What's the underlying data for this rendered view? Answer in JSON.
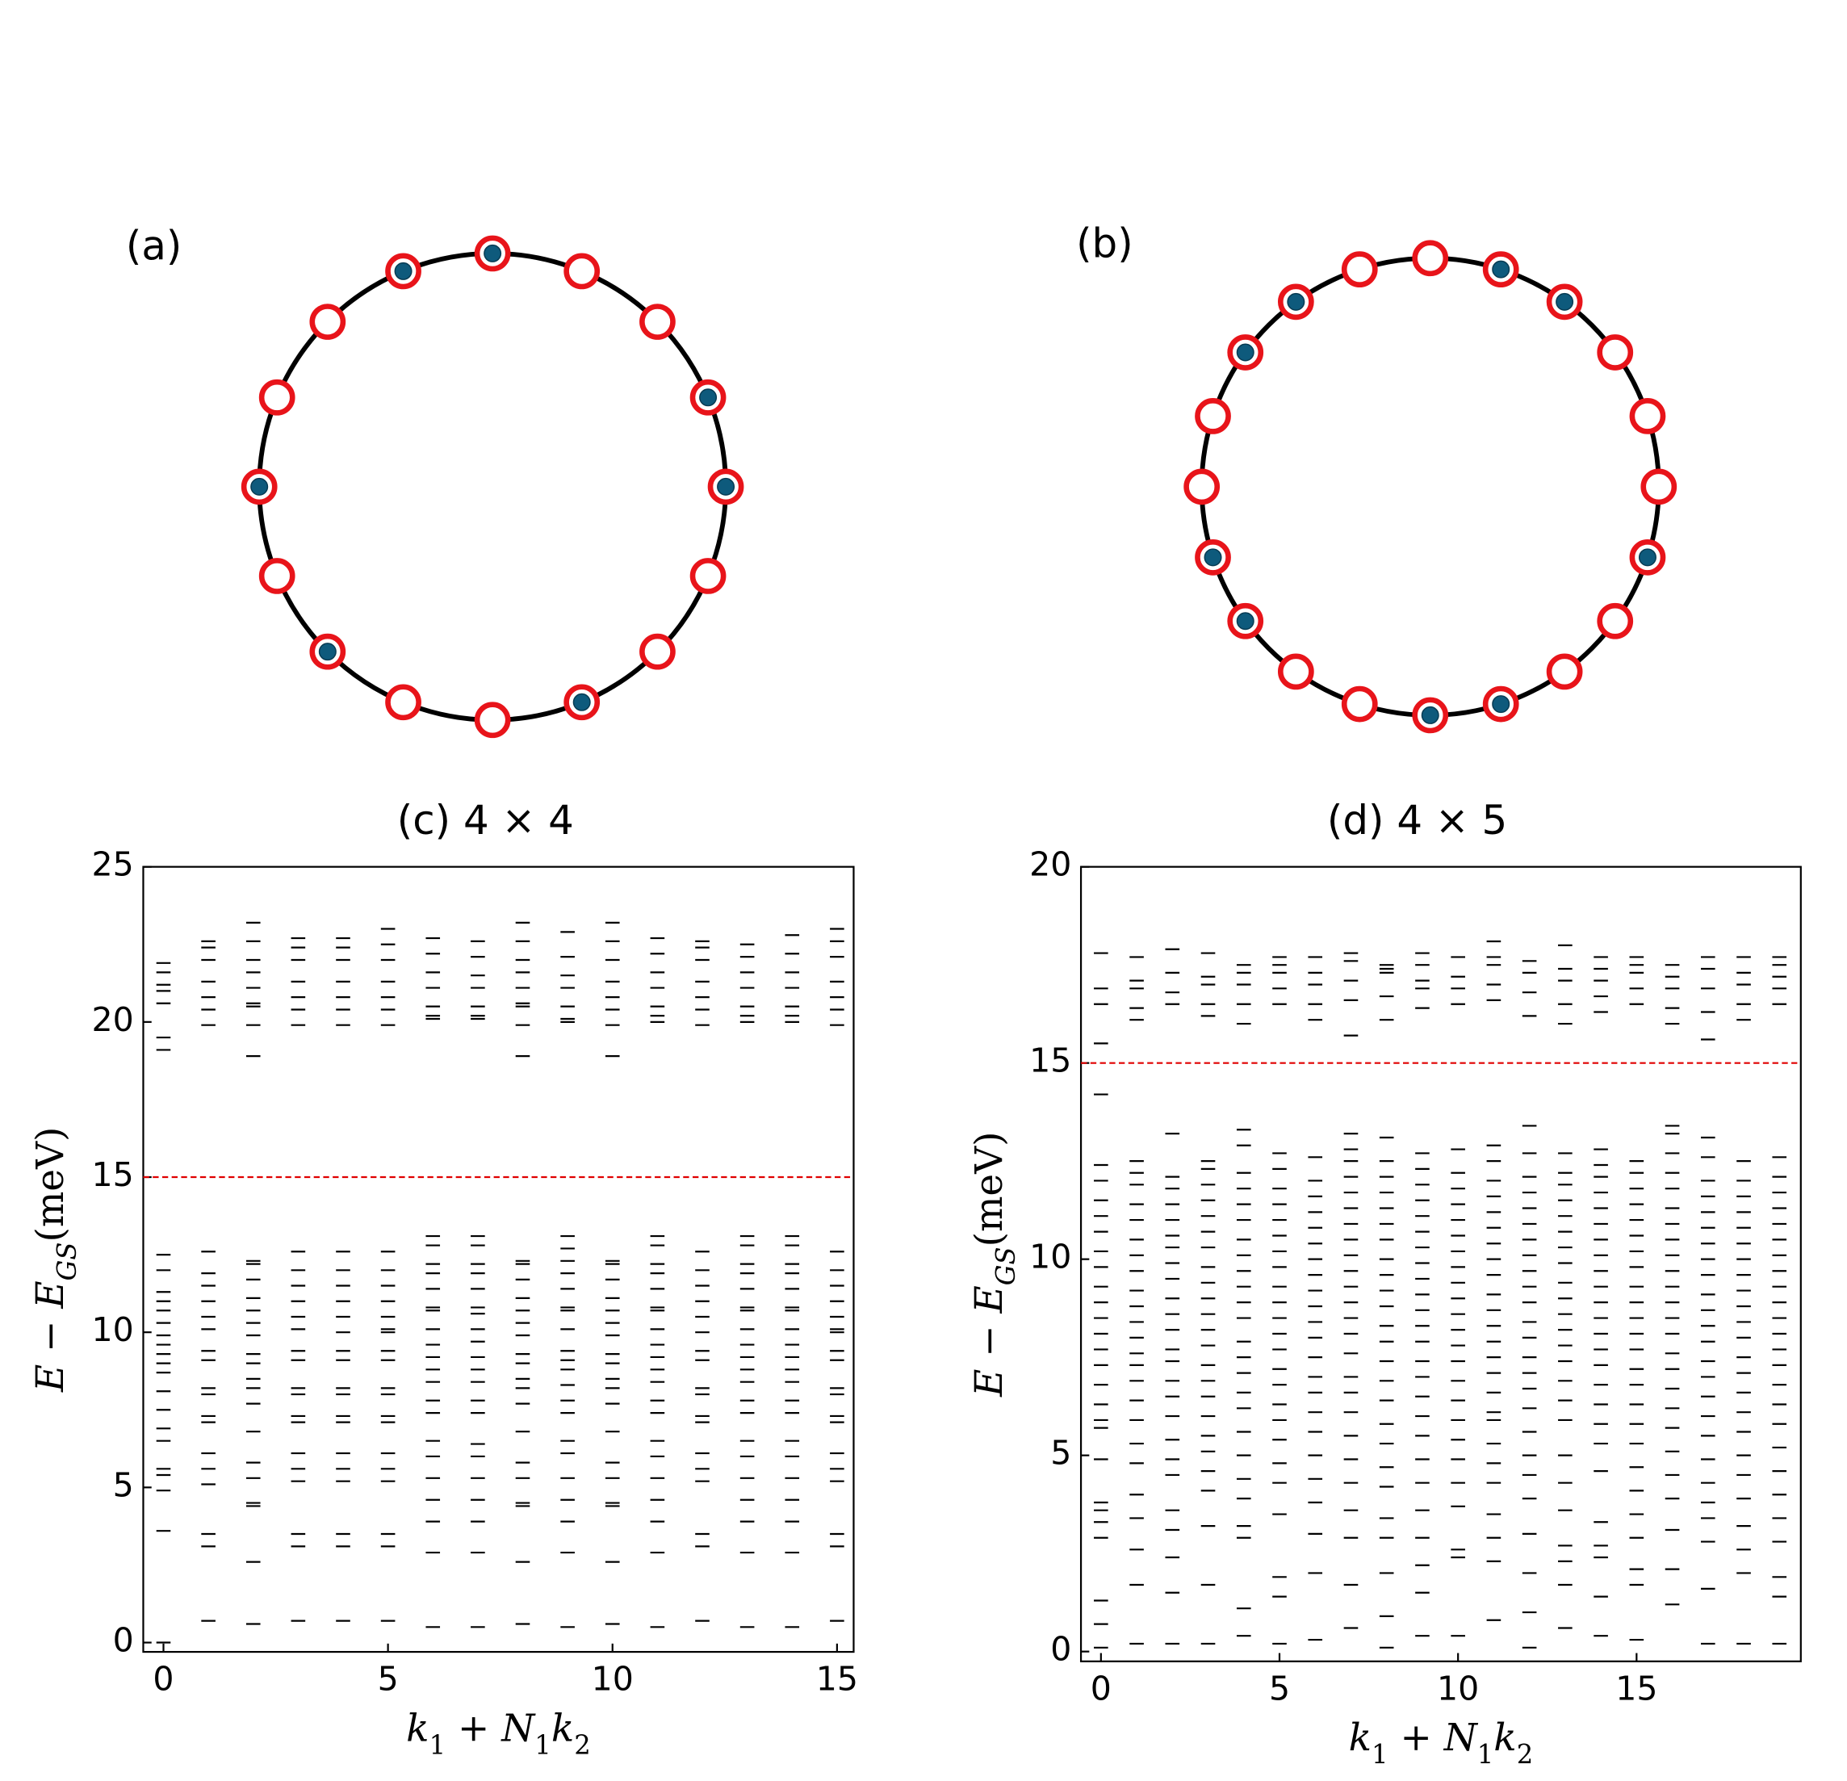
{
  "chart_data": [
    {
      "type": "ring",
      "label": "(a)",
      "values": [
        1,
        0,
        0,
        1,
        1,
        0,
        0,
        1,
        0,
        0,
        1,
        0,
        1,
        0,
        0,
        1
      ]
    },
    {
      "type": "ring",
      "label": "(b)",
      "values": [
        0,
        1,
        1,
        0,
        0,
        0,
        1,
        0,
        0,
        1,
        1,
        0,
        0,
        1,
        1,
        0,
        0,
        1,
        1,
        0
      ]
    },
    {
      "type": "levels",
      "title": "(c)  4 × 4",
      "ylabel": [
        "E − E",
        "GS",
        "(meV)"
      ],
      "xlabel": [
        "k",
        "1",
        " + N",
        "1",
        "k",
        "2"
      ],
      "xlim": [
        -0.45,
        15.37
      ],
      "xticks": [
        0,
        5,
        10,
        15
      ],
      "ylim": [
        -0.3,
        25
      ],
      "yticks": [
        0,
        5,
        10,
        15,
        20,
        25
      ],
      "threshold": 15,
      "threshold_color": "#e00000",
      "color": "#000000",
      "x": [
        0,
        1,
        2,
        3,
        4,
        5,
        6,
        7,
        8,
        9,
        10,
        11,
        12,
        13,
        14,
        15
      ],
      "values": [
        [
          0,
          3.6,
          4.9,
          5.4,
          5.6,
          6.5,
          6.9,
          7.5,
          8.1,
          8.7,
          9.0,
          9.3,
          9.6,
          9.9,
          10.3,
          10.7,
          11.0,
          11.3,
          12.0,
          12.5,
          19.1,
          19.5,
          20.6,
          21.0,
          21.2,
          21.6,
          21.9
        ],
        [
          0.7,
          3.1,
          3.5,
          5.1,
          5.6,
          6.1,
          7.1,
          7.3,
          8.0,
          8.2,
          9.1,
          9.4,
          10.1,
          10.5,
          11.0,
          11.5,
          11.9,
          12.6,
          19.9,
          20.4,
          20.8,
          21.3,
          22.0,
          22.4,
          22.6
        ],
        [
          0.6,
          2.6,
          4.4,
          4.5,
          5.3,
          5.8,
          6.8,
          7.7,
          8.2,
          8.5,
          9.0,
          9.3,
          9.9,
          10.3,
          10.7,
          11.1,
          11.7,
          12.2,
          12.3,
          18.9,
          19.9,
          20.5,
          20.6,
          21.1,
          21.6,
          22.0,
          22.6,
          23.2
        ],
        [
          0.7,
          3.1,
          3.5,
          5.2,
          5.6,
          6.1,
          7.1,
          7.3,
          8.0,
          8.2,
          9.1,
          9.4,
          10.1,
          10.5,
          11.0,
          11.5,
          12.0,
          12.6,
          19.9,
          20.4,
          20.8,
          21.3,
          22.0,
          22.4,
          22.7
        ],
        [
          0.7,
          3.1,
          3.5,
          5.2,
          5.6,
          6.1,
          7.1,
          7.3,
          8.0,
          8.2,
          9.1,
          9.4,
          10.0,
          10.5,
          11.0,
          11.5,
          12.0,
          12.6,
          19.9,
          20.4,
          20.8,
          21.3,
          22.0,
          22.4,
          22.7
        ],
        [
          0.7,
          3.1,
          3.5,
          5.2,
          5.6,
          6.1,
          7.1,
          7.3,
          8.0,
          8.2,
          9.1,
          9.4,
          10.0,
          10.1,
          10.5,
          11.0,
          11.5,
          12.0,
          12.6,
          19.9,
          20.4,
          20.8,
          21.3,
          22.0,
          22.5,
          23.0
        ],
        [
          0.5,
          2.9,
          3.9,
          4.6,
          5.3,
          6.0,
          6.5,
          7.4,
          7.8,
          8.4,
          8.8,
          9.2,
          9.6,
          10.1,
          10.7,
          10.8,
          11.4,
          11.9,
          12.2,
          12.8,
          13.1,
          20.1,
          20.2,
          20.5,
          21.1,
          21.6,
          22.2,
          22.7
        ],
        [
          0.5,
          2.9,
          3.9,
          4.6,
          5.3,
          6.0,
          6.4,
          7.4,
          7.8,
          8.4,
          8.8,
          9.2,
          9.7,
          10.1,
          10.6,
          10.8,
          11.4,
          11.9,
          12.2,
          12.8,
          13.1,
          20.1,
          20.2,
          20.5,
          21.1,
          21.5,
          22.1,
          22.6
        ],
        [
          0.6,
          2.6,
          4.4,
          4.5,
          5.3,
          5.8,
          6.8,
          7.7,
          8.2,
          8.5,
          9.0,
          9.3,
          9.9,
          10.3,
          10.7,
          11.1,
          11.7,
          12.2,
          12.3,
          18.9,
          19.9,
          20.5,
          20.6,
          21.1,
          21.6,
          22.0,
          22.6,
          23.2
        ],
        [
          0.5,
          2.9,
          3.9,
          4.6,
          5.3,
          6.1,
          6.5,
          7.4,
          7.8,
          8.3,
          8.8,
          9.1,
          9.4,
          10.1,
          10.7,
          10.8,
          11.4,
          11.9,
          12.3,
          12.7,
          13.1,
          20.0,
          20.1,
          20.5,
          21.1,
          21.5,
          22.1,
          22.9
        ],
        [
          0.6,
          2.6,
          4.4,
          4.5,
          5.3,
          5.8,
          6.8,
          7.7,
          8.2,
          8.5,
          9.0,
          9.3,
          9.9,
          10.3,
          10.7,
          11.1,
          11.7,
          12.2,
          12.3,
          18.9,
          19.9,
          20.4,
          20.8,
          21.3,
          22.0,
          22.6,
          23.2
        ],
        [
          0.5,
          2.9,
          3.9,
          4.6,
          5.3,
          6.0,
          6.5,
          7.4,
          7.8,
          8.4,
          8.8,
          9.2,
          9.6,
          10.1,
          10.7,
          10.8,
          11.4,
          11.9,
          12.2,
          12.8,
          13.1,
          20.0,
          20.2,
          20.5,
          21.1,
          21.6,
          22.2,
          22.7
        ],
        [
          0.7,
          3.1,
          3.5,
          5.2,
          5.6,
          6.1,
          7.1,
          7.3,
          8.0,
          8.2,
          9.1,
          9.4,
          10.0,
          10.5,
          11.0,
          11.5,
          12.0,
          12.6,
          19.9,
          20.4,
          20.8,
          21.3,
          22.0,
          22.4,
          22.6
        ],
        [
          0.5,
          2.9,
          3.9,
          4.6,
          5.3,
          6.0,
          6.5,
          7.4,
          7.8,
          8.4,
          8.8,
          9.2,
          9.6,
          10.1,
          10.7,
          10.8,
          11.4,
          11.9,
          12.2,
          12.8,
          13.1,
          20.0,
          20.2,
          20.5,
          21.1,
          21.6,
          22.1,
          22.5
        ],
        [
          0.5,
          2.9,
          3.9,
          4.6,
          5.3,
          6.0,
          6.5,
          7.4,
          7.8,
          8.4,
          8.8,
          9.2,
          9.6,
          10.1,
          10.7,
          10.8,
          11.4,
          11.9,
          12.2,
          12.8,
          13.1,
          20.0,
          20.2,
          20.5,
          21.1,
          21.6,
          22.2,
          22.8
        ],
        [
          0.7,
          3.1,
          3.5,
          5.2,
          5.6,
          6.1,
          7.1,
          7.3,
          8.0,
          8.2,
          9.1,
          9.4,
          10.0,
          10.1,
          10.5,
          11.0,
          11.5,
          12.0,
          12.6,
          19.9,
          20.4,
          20.8,
          21.3,
          22.1,
          22.6,
          23.0
        ]
      ]
    },
    {
      "type": "levels",
      "title": "(d)  4 × 5",
      "ylabel": [
        "E − E",
        "GS",
        "(meV)"
      ],
      "xlabel": [
        "k",
        "1",
        " + N",
        "1",
        "k",
        "2"
      ],
      "xlim": [
        -0.56,
        19.6
      ],
      "xticks": [
        0,
        5,
        10,
        15
      ],
      "ylim": [
        -0.25,
        20
      ],
      "yticks": [
        0,
        5,
        10,
        15,
        20
      ],
      "threshold": 15,
      "threshold_color": "#e00000",
      "color": "#000000",
      "x": [
        0,
        1,
        2,
        3,
        4,
        5,
        6,
        7,
        8,
        9,
        10,
        11,
        12,
        13,
        14,
        15,
        16,
        17,
        18,
        19
      ],
      "values": [
        [
          0.1,
          0.7,
          1.3,
          2.9,
          3.3,
          3.6,
          3.8,
          4.9,
          5.7,
          5.9,
          6.3,
          6.8,
          7.3,
          7.7,
          8.1,
          8.5,
          8.9,
          9.3,
          9.8,
          10.2,
          10.7,
          11.1,
          11.5,
          12.0,
          12.4,
          14.2,
          15.5,
          16.5,
          16.9,
          17.8
        ],
        [
          0.2,
          1.7,
          2.6,
          3.4,
          4.0,
          4.8,
          5.3,
          5.9,
          6.4,
          6.9,
          7.3,
          7.6,
          8.0,
          8.4,
          8.8,
          9.2,
          9.7,
          10.1,
          10.5,
          11.0,
          11.4,
          11.9,
          12.2,
          12.5,
          16.1,
          16.4,
          16.9,
          17.1,
          17.7
        ],
        [
          0.2,
          1.5,
          2.4,
          3.1,
          3.6,
          4.5,
          4.9,
          5.4,
          6.0,
          6.5,
          6.9,
          7.4,
          7.7,
          8.2,
          8.6,
          9.0,
          9.5,
          9.9,
          10.3,
          10.6,
          11.0,
          11.4,
          11.8,
          12.1,
          13.2,
          16.5,
          16.8,
          17.3,
          17.9
        ],
        [
          0.2,
          1.7,
          3.2,
          4.1,
          4.6,
          5.1,
          5.5,
          6.0,
          6.5,
          6.9,
          7.3,
          7.8,
          8.2,
          8.6,
          9.0,
          9.4,
          9.8,
          10.3,
          10.7,
          11.1,
          11.5,
          11.9,
          12.3,
          12.5,
          16.2,
          16.5,
          17.0,
          17.2,
          17.8
        ],
        [
          0.4,
          1.1,
          2.9,
          3.2,
          3.9,
          4.4,
          5.0,
          5.6,
          6.2,
          6.6,
          7.1,
          7.5,
          7.9,
          8.5,
          8.9,
          9.3,
          9.7,
          10.1,
          10.5,
          11.0,
          11.4,
          11.8,
          12.2,
          12.9,
          13.3,
          16.0,
          16.5,
          17.0,
          17.3,
          17.5
        ],
        [
          0.2,
          1.4,
          1.9,
          3.5,
          4.3,
          4.8,
          5.4,
          5.9,
          6.3,
          6.8,
          7.2,
          7.7,
          8.1,
          8.5,
          8.9,
          9.3,
          9.8,
          10.2,
          10.6,
          11.0,
          11.4,
          11.8,
          12.3,
          12.7,
          16.5,
          16.9,
          17.3,
          17.5,
          17.7
        ],
        [
          0.3,
          2.0,
          3.0,
          3.8,
          4.4,
          5.0,
          5.6,
          6.1,
          6.6,
          7.0,
          7.5,
          8.0,
          8.4,
          8.8,
          9.2,
          9.6,
          10.0,
          10.4,
          10.8,
          11.2,
          11.6,
          12.0,
          12.6,
          16.1,
          16.5,
          17.0,
          17.3,
          17.7
        ],
        [
          0.6,
          1.7,
          2.9,
          3.6,
          4.3,
          4.9,
          5.5,
          6.1,
          6.6,
          7.0,
          7.6,
          8.1,
          8.5,
          8.9,
          9.3,
          9.7,
          10.1,
          10.5,
          10.9,
          11.3,
          11.7,
          12.1,
          12.5,
          12.8,
          13.2,
          15.7,
          16.6,
          17.1,
          17.6,
          17.8
        ],
        [
          0.1,
          0.9,
          2.0,
          2.9,
          3.4,
          4.2,
          4.7,
          5.3,
          5.8,
          6.4,
          6.9,
          7.4,
          7.9,
          8.3,
          8.8,
          9.2,
          9.6,
          10.0,
          10.5,
          10.9,
          11.3,
          11.7,
          12.1,
          12.5,
          13.1,
          16.1,
          16.7,
          17.3,
          17.4,
          17.5
        ],
        [
          0.4,
          1.5,
          2.2,
          2.9,
          3.6,
          4.3,
          4.9,
          5.5,
          6.0,
          6.5,
          7.0,
          7.4,
          7.9,
          8.3,
          8.7,
          9.1,
          9.5,
          9.9,
          10.3,
          10.7,
          11.1,
          11.5,
          11.9,
          12.3,
          12.7,
          16.4,
          16.9,
          17.1,
          17.5,
          17.8
        ],
        [
          0.4,
          2.4,
          2.6,
          3.7,
          4.3,
          4.9,
          5.4,
          5.9,
          6.4,
          6.9,
          7.4,
          7.8,
          8.2,
          8.6,
          9.0,
          9.4,
          9.8,
          10.2,
          10.6,
          11.0,
          11.4,
          11.8,
          12.2,
          12.8,
          16.5,
          16.9,
          17.2,
          17.7
        ],
        [
          0.8,
          2.3,
          2.9,
          3.5,
          4.3,
          4.8,
          5.3,
          5.9,
          6.1,
          6.6,
          7.1,
          7.5,
          7.9,
          8.3,
          8.7,
          9.1,
          9.6,
          10.0,
          10.4,
          10.8,
          11.2,
          11.6,
          12.0,
          12.5,
          12.9,
          16.6,
          17.0,
          17.5,
          17.7,
          18.1
        ],
        [
          0.1,
          1.0,
          2.0,
          3.0,
          3.9,
          4.5,
          5.0,
          5.6,
          6.2,
          6.7,
          7.1,
          7.5,
          8.0,
          8.4,
          8.9,
          9.3,
          9.7,
          10.1,
          10.5,
          10.9,
          11.3,
          11.7,
          12.1,
          12.7,
          13.4,
          16.2,
          16.8,
          17.3,
          17.6
        ],
        [
          0.6,
          1.7,
          2.3,
          2.7,
          3.6,
          4.3,
          5.0,
          5.9,
          6.4,
          6.9,
          7.4,
          7.8,
          8.2,
          8.6,
          9.0,
          9.4,
          9.9,
          10.3,
          10.7,
          11.1,
          11.5,
          11.9,
          12.2,
          12.7,
          16.0,
          16.5,
          17.1,
          17.4,
          18.0
        ],
        [
          0.4,
          1.4,
          2.4,
          2.7,
          3.3,
          4.6,
          5.3,
          5.8,
          6.3,
          6.8,
          7.3,
          7.7,
          8.1,
          8.5,
          8.9,
          9.3,
          9.7,
          10.1,
          10.5,
          10.9,
          11.3,
          11.7,
          12.1,
          12.4,
          12.8,
          16.3,
          16.7,
          17.1,
          17.4,
          17.7
        ],
        [
          0.3,
          1.7,
          2.1,
          2.9,
          3.5,
          4.1,
          4.7,
          5.3,
          5.8,
          6.3,
          6.8,
          7.2,
          7.7,
          8.1,
          8.5,
          8.9,
          9.3,
          9.8,
          10.2,
          10.6,
          11.0,
          11.4,
          11.8,
          12.2,
          12.5,
          16.5,
          16.9,
          17.3,
          17.5,
          17.7
        ],
        [
          1.2,
          2.1,
          3.1,
          3.9,
          4.5,
          5.1,
          5.7,
          6.2,
          6.7,
          7.2,
          7.6,
          8.1,
          8.5,
          8.9,
          9.3,
          9.7,
          10.1,
          10.5,
          10.9,
          11.3,
          11.8,
          12.2,
          12.7,
          13.2,
          13.4,
          16.0,
          16.4,
          16.9,
          17.2,
          17.5
        ],
        [
          0.2,
          1.6,
          2.8,
          3.4,
          3.8,
          4.3,
          4.9,
          5.5,
          6.0,
          6.5,
          7.0,
          7.4,
          7.9,
          8.3,
          8.7,
          9.1,
          9.6,
          10.0,
          10.4,
          10.8,
          11.2,
          11.6,
          12.0,
          12.6,
          13.1,
          15.6,
          16.3,
          16.9,
          17.4,
          17.7
        ],
        [
          0.2,
          2.0,
          2.6,
          3.2,
          3.9,
          4.5,
          5.0,
          5.6,
          6.1,
          6.6,
          7.1,
          7.5,
          8.0,
          8.4,
          8.8,
          9.2,
          9.6,
          10.0,
          10.4,
          10.8,
          11.2,
          11.6,
          12.0,
          12.5,
          16.1,
          16.5,
          17.0,
          17.3,
          17.7
        ],
        [
          0.2,
          1.4,
          1.9,
          2.8,
          3.4,
          4.0,
          4.6,
          5.2,
          5.8,
          6.3,
          6.8,
          7.3,
          7.7,
          8.1,
          8.5,
          8.9,
          9.3,
          9.7,
          10.1,
          10.5,
          10.9,
          11.3,
          11.7,
          12.1,
          12.6,
          16.5,
          16.9,
          17.2,
          17.5,
          17.7
        ]
      ]
    }
  ]
}
